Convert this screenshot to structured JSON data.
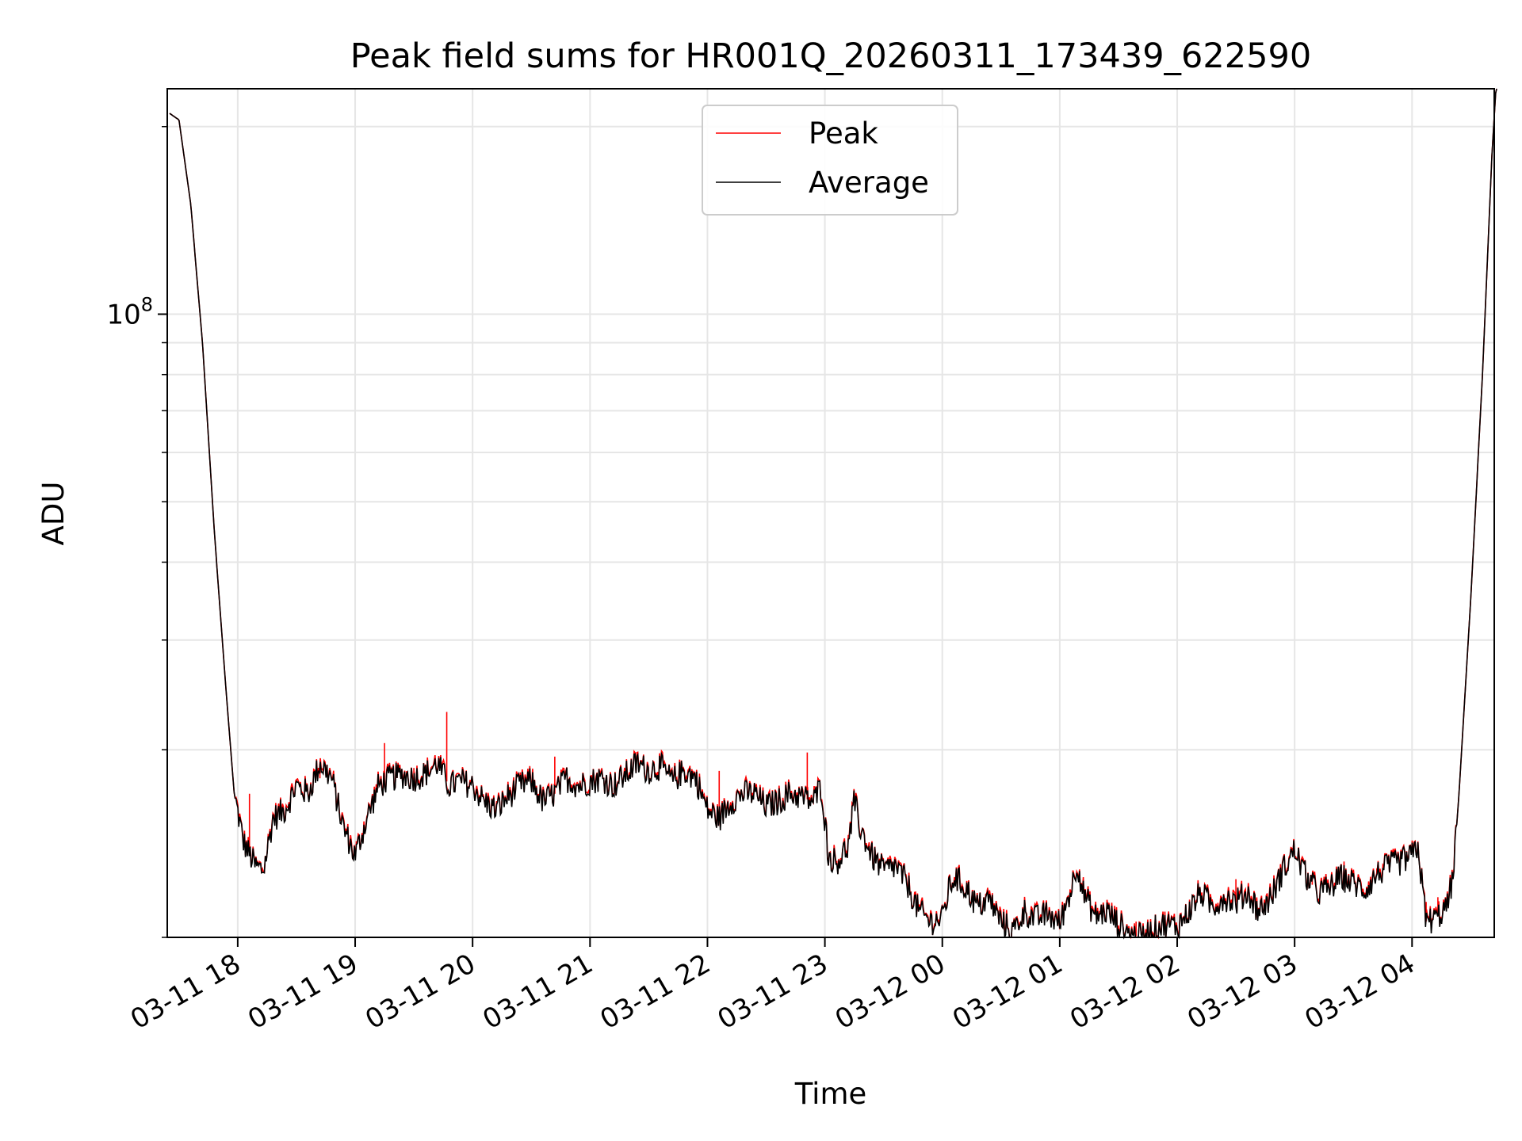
{
  "chart_data": {
    "type": "line",
    "title": "Peak field sums for HR001Q_20260311_173439_622590",
    "xlabel": "Time",
    "ylabel": "ADU",
    "yscale": "log",
    "ylim": [
      10000000,
      230000000
    ],
    "ytick_major": {
      "value": 100000000,
      "base": "10",
      "exponent": "8"
    },
    "ytick_minor": [
      10000000,
      20000000,
      30000000,
      40000000,
      50000000,
      60000000,
      70000000,
      80000000,
      90000000,
      200000000
    ],
    "xlim_hours": [
      17.4,
      28.7
    ],
    "xticks": [
      {
        "hour": 18,
        "label": "03-11 18"
      },
      {
        "hour": 19,
        "label": "03-11 19"
      },
      {
        "hour": 20,
        "label": "03-11 20"
      },
      {
        "hour": 21,
        "label": "03-11 21"
      },
      {
        "hour": 22,
        "label": "03-11 22"
      },
      {
        "hour": 23,
        "label": "03-11 23"
      },
      {
        "hour": 24,
        "label": "03-12 00"
      },
      {
        "hour": 25,
        "label": "03-12 01"
      },
      {
        "hour": 26,
        "label": "03-12 02"
      },
      {
        "hour": 27,
        "label": "03-12 03"
      },
      {
        "hour": 28,
        "label": "03-12 04"
      }
    ],
    "grid": true,
    "legend_position": "top-center",
    "series": [
      {
        "name": "Peak",
        "color": "#ff0000"
      },
      {
        "name": "Average",
        "color": "#000000"
      }
    ],
    "average_points": [
      [
        17.42,
        210000000
      ],
      [
        17.5,
        205000000
      ],
      [
        17.6,
        150000000
      ],
      [
        17.7,
        90000000
      ],
      [
        17.8,
        45000000
      ],
      [
        17.9,
        25000000
      ],
      [
        17.97,
        17000000
      ],
      [
        18.05,
        14200000
      ],
      [
        18.15,
        13000000
      ],
      [
        18.22,
        12800000
      ],
      [
        18.3,
        15500000
      ],
      [
        18.4,
        16000000
      ],
      [
        18.5,
        17500000
      ],
      [
        18.6,
        17000000
      ],
      [
        18.7,
        19000000
      ],
      [
        18.8,
        18000000
      ],
      [
        18.9,
        15000000
      ],
      [
        19.0,
        13500000
      ],
      [
        19.1,
        15500000
      ],
      [
        19.2,
        17500000
      ],
      [
        19.3,
        18000000
      ],
      [
        19.4,
        18200000
      ],
      [
        19.5,
        18000000
      ],
      [
        19.6,
        18300000
      ],
      [
        19.7,
        19000000
      ],
      [
        19.8,
        17500000
      ],
      [
        19.9,
        17800000
      ],
      [
        20.0,
        17500000
      ],
      [
        20.1,
        16500000
      ],
      [
        20.2,
        16000000
      ],
      [
        20.3,
        16800000
      ],
      [
        20.4,
        17500000
      ],
      [
        20.5,
        17800000
      ],
      [
        20.6,
        16500000
      ],
      [
        20.7,
        17000000
      ],
      [
        20.8,
        18000000
      ],
      [
        20.9,
        17500000
      ],
      [
        21.0,
        17800000
      ],
      [
        21.1,
        18000000
      ],
      [
        21.2,
        17500000
      ],
      [
        21.3,
        18200000
      ],
      [
        21.4,
        19000000
      ],
      [
        21.5,
        18500000
      ],
      [
        21.6,
        18800000
      ],
      [
        21.7,
        17800000
      ],
      [
        21.8,
        18500000
      ],
      [
        21.9,
        18000000
      ],
      [
        22.0,
        16000000
      ],
      [
        22.1,
        15500000
      ],
      [
        22.2,
        16500000
      ],
      [
        22.3,
        17000000
      ],
      [
        22.4,
        17000000
      ],
      [
        22.5,
        16200000
      ],
      [
        22.6,
        16500000
      ],
      [
        22.7,
        17000000
      ],
      [
        22.8,
        16800000
      ],
      [
        22.9,
        16500000
      ],
      [
        22.97,
        17500000
      ],
      [
        23.03,
        13500000
      ],
      [
        23.1,
        13200000
      ],
      [
        23.2,
        14000000
      ],
      [
        23.25,
        16500000
      ],
      [
        23.3,
        15000000
      ],
      [
        23.4,
        13500000
      ],
      [
        23.5,
        12800000
      ],
      [
        23.6,
        13000000
      ],
      [
        23.7,
        12200000
      ],
      [
        23.8,
        11000000
      ],
      [
        23.9,
        10600000
      ],
      [
        24.0,
        10700000
      ],
      [
        24.05,
        11800000
      ],
      [
        24.1,
        12500000
      ],
      [
        24.2,
        12000000
      ],
      [
        24.3,
        11200000
      ],
      [
        24.4,
        11500000
      ],
      [
        24.5,
        10600000
      ],
      [
        24.6,
        10200000
      ],
      [
        24.7,
        11000000
      ],
      [
        24.8,
        10700000
      ],
      [
        24.9,
        10900000
      ],
      [
        25.0,
        10500000
      ],
      [
        25.1,
        12000000
      ],
      [
        25.15,
        13200000
      ],
      [
        25.2,
        11800000
      ],
      [
        25.3,
        10800000
      ],
      [
        25.4,
        11000000
      ],
      [
        25.5,
        10500000
      ],
      [
        25.6,
        10100000
      ],
      [
        25.7,
        10000000
      ],
      [
        25.8,
        10300000
      ],
      [
        25.9,
        10500000
      ],
      [
        26.0,
        10400000
      ],
      [
        26.1,
        11000000
      ],
      [
        26.2,
        11800000
      ],
      [
        26.3,
        11200000
      ],
      [
        26.4,
        11600000
      ],
      [
        26.5,
        11400000
      ],
      [
        26.6,
        11800000
      ],
      [
        26.7,
        11000000
      ],
      [
        26.8,
        11600000
      ],
      [
        26.9,
        12800000
      ],
      [
        27.0,
        13800000
      ],
      [
        27.1,
        12500000
      ],
      [
        27.2,
        11800000
      ],
      [
        27.3,
        12000000
      ],
      [
        27.4,
        12500000
      ],
      [
        27.5,
        12200000
      ],
      [
        27.6,
        11900000
      ],
      [
        27.7,
        12600000
      ],
      [
        27.8,
        13000000
      ],
      [
        27.9,
        13200000
      ],
      [
        28.0,
        13500000
      ],
      [
        28.05,
        14000000
      ],
      [
        28.12,
        10600000
      ],
      [
        28.2,
        10700000
      ],
      [
        28.3,
        11200000
      ],
      [
        28.35,
        12600000
      ],
      [
        28.4,
        17000000
      ],
      [
        28.5,
        35000000
      ],
      [
        28.6,
        80000000
      ],
      [
        28.68,
        180000000
      ],
      [
        28.72,
        240000000
      ]
    ],
    "peak_spikes": [
      [
        18.1,
        17000000
      ],
      [
        18.7,
        18000000
      ],
      [
        19.25,
        20500000
      ],
      [
        19.5,
        18700000
      ],
      [
        19.78,
        23000000
      ],
      [
        20.7,
        19500000
      ],
      [
        21.4,
        19000000
      ],
      [
        22.1,
        18500000
      ],
      [
        22.85,
        19800000
      ],
      [
        25.65,
        10600000
      ],
      [
        26.5,
        12400000
      ],
      [
        27.15,
        12600000
      ],
      [
        27.7,
        12900000
      ],
      [
        28.12,
        11400000
      ],
      [
        28.22,
        11600000
      ]
    ]
  }
}
